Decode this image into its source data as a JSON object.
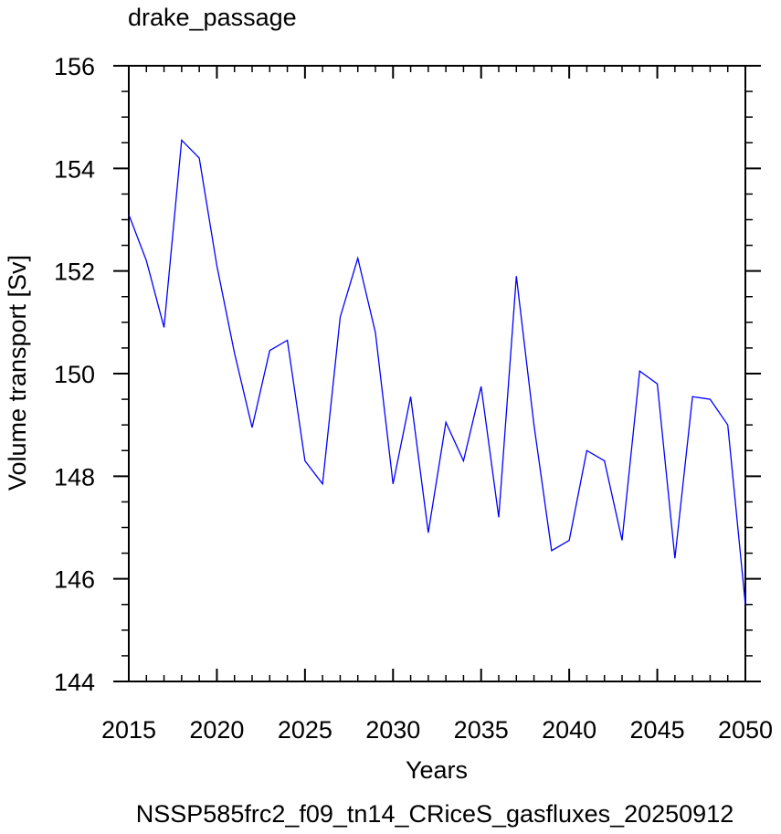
{
  "chart_data": {
    "type": "line",
    "title": "drake_passage",
    "xlabel": "Years",
    "ylabel": "Volume transport [Sv]",
    "xlim": [
      2015,
      2050
    ],
    "ylim": [
      144,
      156
    ],
    "x_ticks": [
      "2015",
      "2020",
      "2025",
      "2030",
      "2035",
      "2040",
      "2045",
      "2050"
    ],
    "y_ticks": [
      "144",
      "146",
      "148",
      "150",
      "152",
      "154",
      "156"
    ],
    "grid": false,
    "series": [
      {
        "color": "#0000ff",
        "x": [
          2015,
          2016,
          2017,
          2018,
          2019,
          2020,
          2021,
          2022,
          2023,
          2024,
          2025,
          2026,
          2027,
          2028,
          2029,
          2030,
          2031,
          2032,
          2033,
          2034,
          2035,
          2036,
          2037,
          2038,
          2039,
          2040,
          2041,
          2042,
          2043,
          2044,
          2045,
          2046,
          2047,
          2048,
          2049,
          2050
        ],
        "values": [
          153.1,
          152.2,
          150.9,
          154.55,
          154.2,
          152.1,
          150.4,
          148.95,
          150.45,
          150.65,
          148.3,
          147.85,
          151.1,
          152.25,
          150.8,
          147.85,
          149.55,
          146.9,
          149.05,
          148.3,
          149.75,
          147.2,
          151.9,
          149.0,
          146.55,
          146.75,
          148.5,
          148.3,
          146.75,
          150.05,
          149.8,
          146.4,
          149.55,
          149.5,
          149.0,
          145.5
        ]
      }
    ],
    "footer": "NSSP585frc2_f09_tn14_CRiceS_gasfluxes_20250912",
    "footer_color": "#0000ff"
  }
}
